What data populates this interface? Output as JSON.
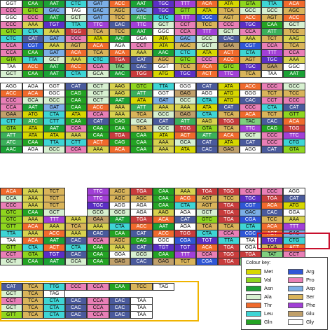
{
  "palette": {
    "Met": "#d7d700",
    "Val": "#8fd61e",
    "Asn": "#1ba135",
    "Ala": "#d7f0d0",
    "Thr": "#f06a2c",
    "Leu": "#3ed5d5",
    "Gln": "#23a323",
    "Arg": "#2f56d6",
    "Pro": "#e97fb6",
    "Asp": "#7baee6",
    "Ser": "#d9b45a",
    "Phe": "#a13fd6",
    "Glu": "#c0a06a",
    "Gly": "#ffffff",
    "Cys": "#5b2ec4",
    "Stop": "#ffffff",
    "Lys": "#d8d24e",
    "Ile": "#3bb05a",
    "His": "#4a5a9c",
    "Tyr": "#7fcf7f",
    "Trp": "#c83c3c"
  },
  "blocks": [
    {
      "id": "block1",
      "rows": [
        [
          "GGT",
          "CAA",
          "AAT",
          "CTC",
          "GAT",
          "ACC",
          "AAT",
          "TGC",
          "TTT",
          "ACA",
          "ATA",
          "GTA",
          "TTA",
          "ACA"
        ],
        [
          "CCC",
          "GTC",
          "GAC",
          "TAG",
          "GAC",
          "AGC",
          "GAC",
          "TGC",
          "GTT",
          "ATA",
          "TCA",
          "GCC",
          "GCC",
          "AGC"
        ],
        [
          "GGC",
          "CCC",
          "AAT",
          "GCT",
          "GAT",
          "TCC",
          "ATC",
          "CTC",
          "TTT",
          "CGC",
          "AGT",
          "ACC",
          "AGT",
          "ACC"
        ],
        [
          "CCC",
          "AAA",
          "TGT",
          "TTA",
          "TTC",
          "CAC",
          "TTC",
          "GCT",
          "CCT",
          "TCC",
          "CCC",
          "TGC",
          "CAA",
          "GCT"
        ],
        [
          "GTC",
          "CTA",
          "AAA",
          "TGG",
          "TCA",
          "TCC",
          "AAT",
          "GGC",
          "CCA",
          "TTT",
          "GCT",
          "CCA",
          "ATT",
          "TCC"
        ],
        [
          "CTC",
          "CAT",
          "GAT",
          "CCC",
          "ATA",
          "AAT",
          "GGA",
          "ATA",
          "GAC",
          "GCC",
          "CAC",
          "AAA",
          "TCT",
          "AAG"
        ],
        [
          "CCA",
          "CGT",
          "AAA",
          "AGT",
          "ACA",
          "AGA",
          "CCT",
          "ATA",
          "AGC",
          "GCT",
          "GAA",
          "CGT",
          "CCA",
          "TCA"
        ],
        [
          "CCA",
          "CAA",
          "GAT",
          "ACA",
          "TCA",
          "ACA",
          "AAA",
          "AAC",
          "CTC",
          "ATA",
          "ACT",
          "CTA",
          "TTT",
          "CCA"
        ],
        [
          "GTA",
          "TTA",
          "GCT",
          "AAA",
          "CTC",
          "TGA",
          "CAT",
          "AGC",
          "GTC",
          "CCC",
          "ACC",
          "AGT",
          "TGC",
          "AAA"
        ],
        [
          "TAA",
          "ACC",
          "AAT",
          "ACC",
          "CCA",
          "TAC",
          "CAC",
          "GGT",
          "TCC",
          "ACA",
          "GTC",
          "TGC",
          "GAA",
          "GGC"
        ],
        [
          "GCT",
          "CAA",
          "AAT",
          "CTA",
          "GCA",
          "AAC",
          "TGG",
          "ATG",
          "TGC",
          "ACT",
          "TTC",
          "TCA",
          "TAA",
          "AAT"
        ]
      ]
    },
    {
      "id": "block2",
      "rows": [
        [
          "AGG",
          "AGA",
          "GGT",
          "CAT",
          "GCT",
          "AAG",
          "GTC",
          "TTA",
          "GGG",
          "CAT",
          "ATA",
          "ACC",
          "CCC",
          "GCC"
        ],
        [
          "ACC",
          "ACA",
          "GGC",
          "CAG",
          "GCT",
          "AAG",
          "ATT",
          "GGT",
          "GAG",
          "AGG",
          "ATG",
          "GGG",
          "TCT",
          "TCC"
        ],
        [
          "CCC",
          "GCA",
          "GCC",
          "CAA",
          "GCT",
          "AAT",
          "ATA",
          "GAT",
          "GCC",
          "CTA",
          "ATG",
          "CAC",
          "CCT",
          "CCC"
        ],
        [
          "CCA",
          "AAT",
          "GAT",
          "CAA",
          "ACC",
          "AAA",
          "ATT",
          "AAA",
          "AAA",
          "ATA",
          "CAT",
          "CCC",
          "CTA",
          "CAT"
        ],
        [
          "GAA",
          "ATG",
          "CTA",
          "ATA",
          "CCA",
          "AAA",
          "TCA",
          "GCC",
          "GAG",
          "CTA",
          "TCA",
          "ACA",
          "TCT",
          "GTT"
        ],
        [
          "CTT",
          "ATC",
          "CTT",
          "CAA",
          "CAT",
          "CAG",
          "GCA",
          "CAT",
          "ATT",
          "AAG",
          "TGG",
          "TAC",
          "CAC",
          "ACA"
        ],
        [
          "GTA",
          "ATA",
          "AAT",
          "CCA",
          "CAA",
          "CAA",
          "TCA",
          "GCC",
          "TGG",
          "GTA",
          "TCA",
          "TTC",
          "CAG",
          "TGG"
        ],
        [
          "ATT",
          "ATA",
          "ATA",
          "AAA",
          "CAA",
          "TGA",
          "CAA",
          "ATA",
          "ACT",
          "ATT",
          "ACA",
          "GCT",
          "CCC",
          "TTC"
        ],
        [
          "ATC",
          "CAA",
          "TTA",
          "CTT",
          "ACT",
          "CAG",
          "CAA",
          "AAA",
          "GCA",
          "CAT",
          "ATA",
          "CAT",
          "CCC",
          "CTG"
        ],
        [
          "AAC",
          "AGA",
          "GCC",
          "CCA",
          "AAA",
          "ACA",
          "CAA",
          "AAA",
          "ATA",
          "CAC",
          "GAG",
          "AGG",
          "CAT",
          "GTA"
        ]
      ]
    },
    {
      "id": "block3",
      "rows": [
        [
          "ACA",
          "AAA",
          "TCT",
          "",
          "TTC",
          "AGC",
          "TGA",
          "CAA",
          "AAA",
          "TGA",
          "TGG",
          "CCT",
          "CCC",
          "AGG"
        ],
        [
          "GCA",
          "AAA",
          "TCT",
          "",
          "TTC",
          "AGC",
          "AGC",
          "CAA",
          "ACG",
          "AGT",
          "TCC",
          "TGC",
          "TGA",
          "CAT"
        ],
        [
          "CCC",
          "AAA",
          "TCT",
          "",
          "TGC",
          "AGG",
          "AGA",
          "CAA",
          "CTA",
          "AGT",
          "TGA",
          "CGT",
          "ACA",
          "ATG"
        ],
        [
          "GTC",
          "CAA",
          "GCT",
          "",
          "GCG",
          "GCG",
          "AGA",
          "AAG",
          "AGA",
          "GCT",
          "TGA",
          "GAC",
          "CAC",
          "GGA"
        ],
        [
          "GTC",
          "AAA",
          "TTT",
          "AAA",
          "GAA",
          "AAT",
          "TGA",
          "ACA",
          "CAT",
          "GTC",
          "TGA",
          "CGA",
          "TCC",
          "AAA"
        ],
        [
          "GTT",
          "ACA",
          "AAA",
          "TCA",
          "AAA",
          "CTA",
          "ACC",
          "AAT",
          "AGA",
          "TCA",
          "TCA",
          "CTA",
          "ACA",
          "TTT"
        ],
        [
          "TTA",
          "AAA",
          "ACC",
          "AAA",
          "CAC",
          "CAA",
          "CAT",
          "ACC",
          "TGG",
          "CTA",
          "CCA",
          "CGC",
          "ACT",
          "GAC"
        ],
        [
          "TAA",
          "ACA",
          "AAT",
          "CAC",
          "CCA",
          "AGC",
          "CAG",
          "GGC",
          "CGA",
          "TGT",
          "TTA",
          "TAA",
          "TGT",
          "CTG"
        ],
        [
          "GTT",
          "CTA",
          "ACT",
          "CTA",
          "CAA",
          "AAA",
          "CAT",
          "TGT",
          "TGT",
          "ACA",
          "TGA",
          "GGA",
          "TCA",
          "ACT"
        ],
        [
          "CCT",
          "GTA",
          "TGT",
          "CAC",
          "CAA",
          "GGA",
          "GCG",
          "CAA",
          "TTT",
          "CCA",
          "TGG",
          "TGA",
          "TAT",
          "CCT"
        ],
        [
          "GCT",
          "CAA",
          "AAT",
          "GCA",
          "CAA",
          "GAG",
          "CAC",
          "GAG",
          "TCT",
          "CGA",
          "TGA",
          "TAT",
          "TGA",
          "TAT"
        ]
      ]
    },
    {
      "id": "block4",
      "rows": [
        [
          "CAT",
          "TCA",
          "TTG",
          "CCC",
          "CCA",
          "CAA",
          "TCC",
          "TAG",
          "",
          "",
          "",
          "",
          "",
          ""
        ],
        [
          "GCT",
          "TCA",
          "TAG",
          "",
          "",
          "",
          "",
          "",
          "",
          "",
          "",
          "",
          "",
          ""
        ],
        [
          "CCT",
          "TCA",
          "CTA",
          "CAC",
          "CCA",
          "CAC",
          "TAA",
          "",
          "",
          "",
          "",
          "",
          "",
          ""
        ],
        [
          "GCT",
          "TCA",
          "CTA",
          "CAC",
          "CCA",
          "CAC",
          "TAA",
          "",
          "",
          "",
          "",
          "",
          "",
          ""
        ],
        [
          "GTT",
          "TCA",
          "CTA",
          "CAC",
          "CCA",
          "CAC",
          "TAA",
          "",
          "",
          "",
          "",
          "",
          "",
          ""
        ]
      ]
    }
  ],
  "key": {
    "title": "Colour key:",
    "left": [
      "Met",
      "Val",
      "Asn",
      "Ala",
      "Thr",
      "Leu",
      "Gln"
    ],
    "right": [
      "Arg",
      "Pro",
      "Asp",
      "Ser",
      "Phe",
      "Glu",
      "Gly"
    ]
  }
}
